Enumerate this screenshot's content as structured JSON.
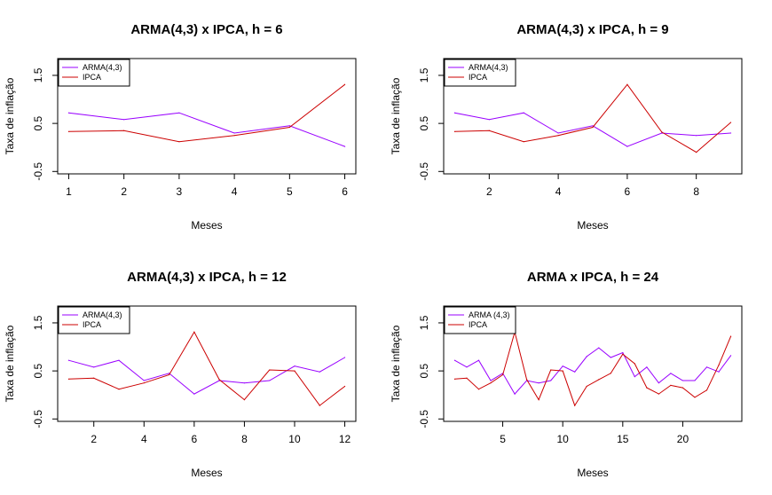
{
  "chart_data": [
    {
      "type": "line",
      "title": "ARMA(4,3) x IPCA, h = 6",
      "xlabel": "Meses",
      "ylabel": "Taxa de inflação",
      "xlim": [
        0.8,
        6.2
      ],
      "ylim": [
        -0.55,
        1.85
      ],
      "xticks": [
        1,
        2,
        3,
        4,
        5,
        6
      ],
      "yticks": [
        -0.5,
        0.5,
        1.5
      ],
      "legend_position": "top-left",
      "x": [
        1,
        2,
        3,
        4,
        5,
        6
      ],
      "series": [
        {
          "name": "ARMA(4,3)",
          "color": "#9900ff",
          "values": [
            0.72,
            0.58,
            0.72,
            0.3,
            0.45,
            0.02
          ]
        },
        {
          "name": "IPCA",
          "color": "#cc0000",
          "values": [
            0.33,
            0.35,
            0.12,
            0.25,
            0.42,
            1.31
          ]
        }
      ]
    },
    {
      "type": "line",
      "title": "ARMA(4,3) x IPCA, h = 9",
      "xlabel": "Meses",
      "ylabel": "Taxa de inflação",
      "xlim": [
        0.68,
        9.32
      ],
      "ylim": [
        -0.55,
        1.85
      ],
      "xticks": [
        2,
        4,
        6,
        8
      ],
      "yticks": [
        -0.5,
        0.5,
        1.5
      ],
      "legend_position": "top-left",
      "x": [
        1,
        2,
        3,
        4,
        5,
        6,
        7,
        8,
        9
      ],
      "series": [
        {
          "name": "ARMA(4,3)",
          "color": "#9900ff",
          "values": [
            0.72,
            0.58,
            0.72,
            0.3,
            0.45,
            0.02,
            0.3,
            0.25,
            0.3
          ]
        },
        {
          "name": "IPCA",
          "color": "#cc0000",
          "values": [
            0.33,
            0.35,
            0.12,
            0.25,
            0.42,
            1.31,
            0.32,
            -0.1,
            0.52
          ]
        }
      ]
    },
    {
      "type": "line",
      "title": "ARMA(4,3) x IPCA, h = 12",
      "xlabel": "Meses",
      "ylabel": "Taxa de inflação",
      "xlim": [
        0.56,
        12.44
      ],
      "ylim": [
        -0.55,
        1.85
      ],
      "xticks": [
        2,
        4,
        6,
        8,
        10,
        12
      ],
      "yticks": [
        -0.5,
        0.5,
        1.5
      ],
      "legend_position": "top-left",
      "x": [
        1,
        2,
        3,
        4,
        5,
        6,
        7,
        8,
        9,
        10,
        11,
        12
      ],
      "series": [
        {
          "name": "ARMA(4,3)",
          "color": "#9900ff",
          "values": [
            0.72,
            0.58,
            0.72,
            0.3,
            0.45,
            0.02,
            0.3,
            0.25,
            0.3,
            0.6,
            0.48,
            0.78
          ]
        },
        {
          "name": "IPCA",
          "color": "#cc0000",
          "values": [
            0.33,
            0.35,
            0.12,
            0.25,
            0.42,
            1.31,
            0.32,
            -0.1,
            0.52,
            0.5,
            -0.22,
            0.18
          ]
        }
      ]
    },
    {
      "type": "line",
      "title": "ARMA x IPCA, h = 24",
      "xlabel": "Meses",
      "ylabel": "Taxa de inflação",
      "xlim": [
        0.08,
        24.92
      ],
      "ylim": [
        -0.55,
        1.85
      ],
      "xticks": [
        5,
        10,
        15,
        20
      ],
      "yticks": [
        -0.5,
        0.5,
        1.5
      ],
      "legend_position": "top-left",
      "x": [
        1,
        2,
        3,
        4,
        5,
        6,
        7,
        8,
        9,
        10,
        11,
        12,
        13,
        14,
        15,
        16,
        17,
        18,
        19,
        20,
        21,
        22,
        23,
        24
      ],
      "series": [
        {
          "name": "ARMA (4,3)",
          "color": "#9900ff",
          "values": [
            0.72,
            0.58,
            0.72,
            0.3,
            0.45,
            0.02,
            0.3,
            0.25,
            0.3,
            0.6,
            0.48,
            0.8,
            0.98,
            0.78,
            0.88,
            0.38,
            0.58,
            0.25,
            0.45,
            0.3,
            0.3,
            0.58,
            0.48,
            0.82
          ]
        },
        {
          "name": "IPCA",
          "color": "#cc0000",
          "values": [
            0.33,
            0.35,
            0.12,
            0.25,
            0.42,
            1.31,
            0.32,
            -0.1,
            0.52,
            0.5,
            -0.22,
            0.18,
            0.32,
            0.45,
            0.85,
            0.65,
            0.15,
            0.02,
            0.2,
            0.15,
            -0.05,
            0.1,
            0.62,
            1.22
          ]
        }
      ]
    }
  ]
}
